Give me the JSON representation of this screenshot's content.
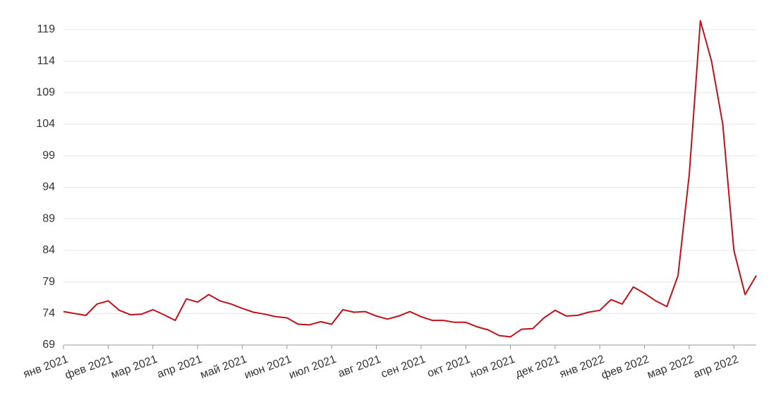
{
  "chart_data": {
    "type": "line",
    "color": "#c0111b",
    "grid": true,
    "categories": [
      "янв 2021",
      null,
      null,
      null,
      "фев 2021",
      null,
      null,
      null,
      "мар 2021",
      null,
      null,
      null,
      "апр 2021",
      null,
      null,
      null,
      "май 2021",
      null,
      null,
      null,
      "июн 2021",
      null,
      null,
      null,
      "июл 2021",
      null,
      null,
      null,
      "авг 2021",
      null,
      null,
      null,
      "сен 2021",
      null,
      null,
      null,
      "окт 2021",
      null,
      null,
      null,
      "ноя 2021",
      null,
      null,
      null,
      "дек 2021",
      null,
      null,
      null,
      "янв 2022",
      null,
      null,
      null,
      "фев 2022",
      null,
      null,
      null,
      "мар 2022",
      null,
      null,
      null,
      "апр 2022",
      null,
      null
    ],
    "values": [
      74.3,
      74.0,
      73.7,
      75.5,
      76.0,
      74.5,
      73.8,
      73.9,
      74.6,
      73.8,
      72.9,
      76.3,
      75.8,
      77.0,
      76.0,
      75.5,
      74.8,
      74.2,
      73.9,
      73.5,
      73.3,
      72.3,
      72.2,
      72.7,
      72.3,
      74.6,
      74.2,
      74.3,
      73.6,
      73.1,
      73.6,
      74.3,
      73.5,
      72.9,
      72.9,
      72.6,
      72.6,
      71.9,
      71.4,
      70.5,
      70.3,
      71.5,
      71.6,
      73.3,
      74.5,
      73.6,
      73.7,
      74.2,
      74.5,
      76.2,
      75.5,
      78.2,
      77.2,
      76.0,
      75.1,
      80.0,
      96.0,
      120.4,
      114.0,
      104.0,
      84.0,
      77.0,
      80.0
    ],
    "ylim": [
      69,
      121
    ],
    "yticks": [
      69,
      74,
      79,
      84,
      89,
      94,
      99,
      104,
      109,
      114,
      119
    ]
  }
}
